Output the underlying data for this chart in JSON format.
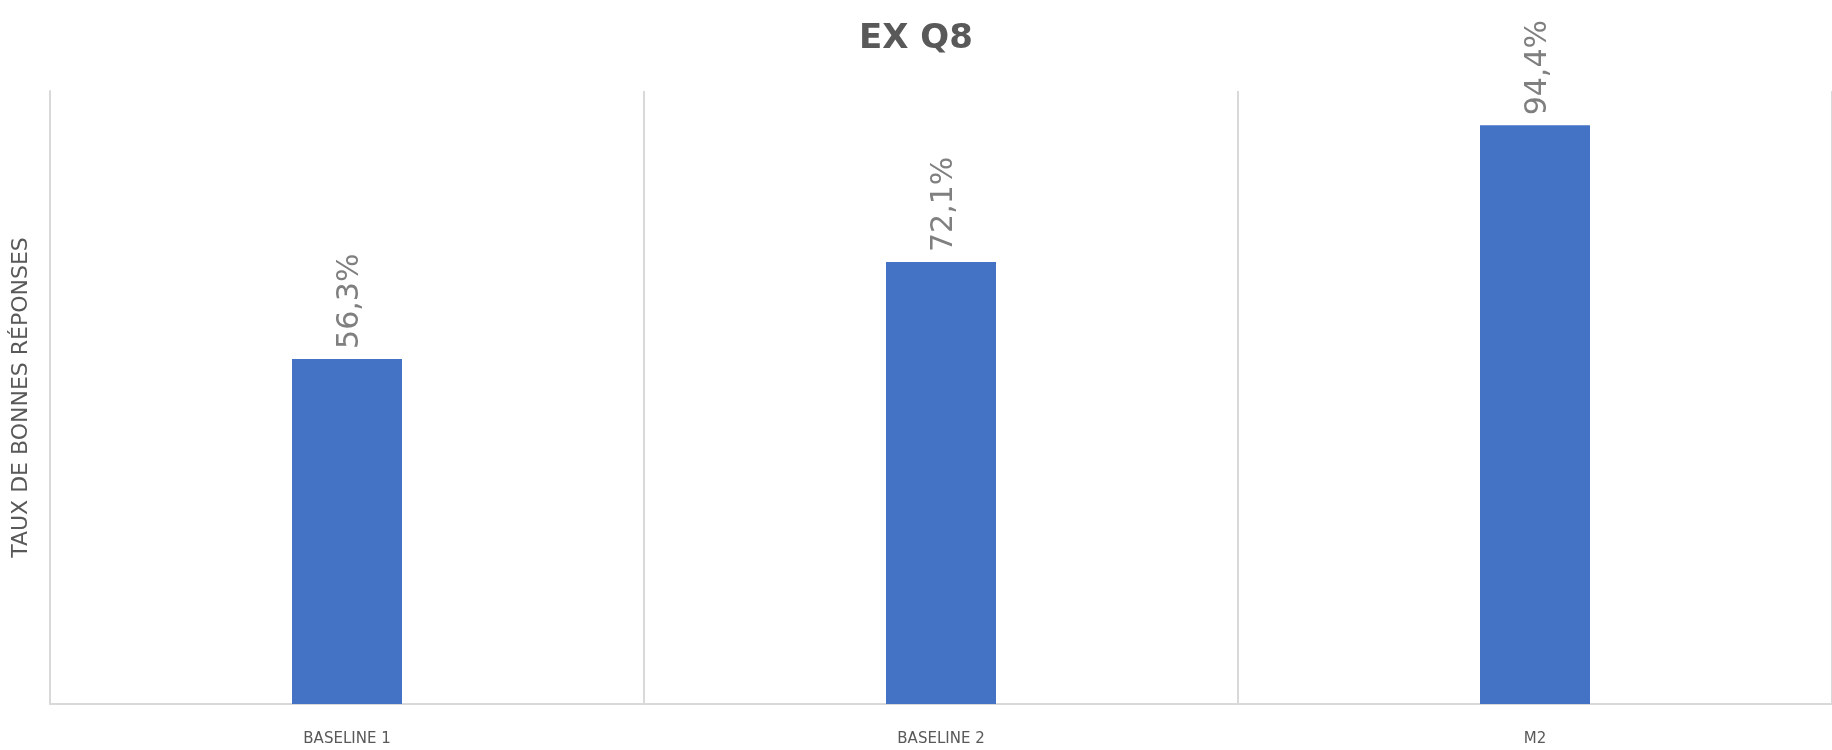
{
  "chart_data": {
    "type": "bar",
    "title": "EX Q8",
    "ylabel": "TAUX DE BONNES RÉPONSES",
    "categories": [
      "BASELINE 1",
      "BASELINE 2",
      "M2"
    ],
    "values": [
      56.3,
      72.1,
      94.4
    ],
    "value_labels": [
      "56,3%",
      "72,1%",
      "94,4%"
    ],
    "color": "#4472c4",
    "grid": "x"
  }
}
